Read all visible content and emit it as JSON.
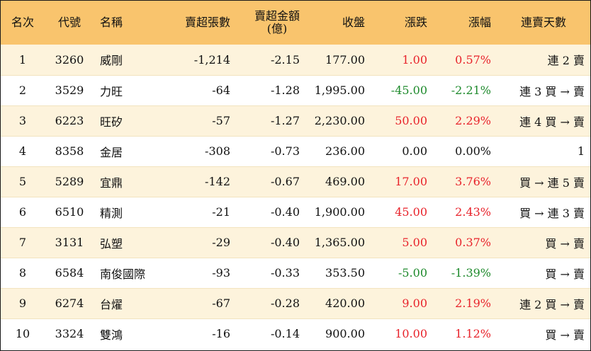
{
  "headers": {
    "rank": "名次",
    "code": "代號",
    "name": "名稱",
    "lots": "賣超張數",
    "amount_line1": "賣超金額",
    "amount_line2": "(億)",
    "close": "收盤",
    "change": "漲跌",
    "pct": "漲幅",
    "days": "連賣天數"
  },
  "colors": {
    "header_bg": "#f9c46d",
    "row_alt_bg": "#fdf3dc",
    "up": "#e8232b",
    "down": "#1e8a2c"
  },
  "rows": [
    {
      "rank": "1",
      "code": "3260",
      "name": "威剛",
      "lots": "-1,214",
      "amount": "-2.15",
      "close": "177.00",
      "change": "1.00",
      "pct": "0.57%",
      "trend": "up",
      "days": "連 2 賣"
    },
    {
      "rank": "2",
      "code": "3529",
      "name": "力旺",
      "lots": "-64",
      "amount": "-1.28",
      "close": "1,995.00",
      "change": "-45.00",
      "pct": "-2.21%",
      "trend": "down",
      "days": "連 3 買 → 賣"
    },
    {
      "rank": "3",
      "code": "6223",
      "name": "旺矽",
      "lots": "-57",
      "amount": "-1.27",
      "close": "2,230.00",
      "change": "50.00",
      "pct": "2.29%",
      "trend": "up",
      "days": "連 4 買 → 賣"
    },
    {
      "rank": "4",
      "code": "8358",
      "name": "金居",
      "lots": "-308",
      "amount": "-0.73",
      "close": "236.00",
      "change": "0.00",
      "pct": "0.00%",
      "trend": "flat",
      "days": "1"
    },
    {
      "rank": "5",
      "code": "5289",
      "name": "宜鼎",
      "lots": "-142",
      "amount": "-0.67",
      "close": "469.00",
      "change": "17.00",
      "pct": "3.76%",
      "trend": "up",
      "days": "買 → 連 5 賣"
    },
    {
      "rank": "6",
      "code": "6510",
      "name": "精測",
      "lots": "-21",
      "amount": "-0.40",
      "close": "1,900.00",
      "change": "45.00",
      "pct": "2.43%",
      "trend": "up",
      "days": "買 → 連 3 賣"
    },
    {
      "rank": "7",
      "code": "3131",
      "name": "弘塑",
      "lots": "-29",
      "amount": "-0.40",
      "close": "1,365.00",
      "change": "5.00",
      "pct": "0.37%",
      "trend": "up",
      "days": "買 → 賣"
    },
    {
      "rank": "8",
      "code": "6584",
      "name": "南俊國際",
      "lots": "-93",
      "amount": "-0.33",
      "close": "353.50",
      "change": "-5.00",
      "pct": "-1.39%",
      "trend": "down",
      "days": "買 → 賣"
    },
    {
      "rank": "9",
      "code": "6274",
      "name": "台燿",
      "lots": "-67",
      "amount": "-0.28",
      "close": "420.00",
      "change": "9.00",
      "pct": "2.19%",
      "trend": "up",
      "days": "連 2 買 → 賣"
    },
    {
      "rank": "10",
      "code": "3324",
      "name": "雙鴻",
      "lots": "-16",
      "amount": "-0.14",
      "close": "900.00",
      "change": "10.00",
      "pct": "1.12%",
      "trend": "up",
      "days": "買 → 賣"
    }
  ]
}
